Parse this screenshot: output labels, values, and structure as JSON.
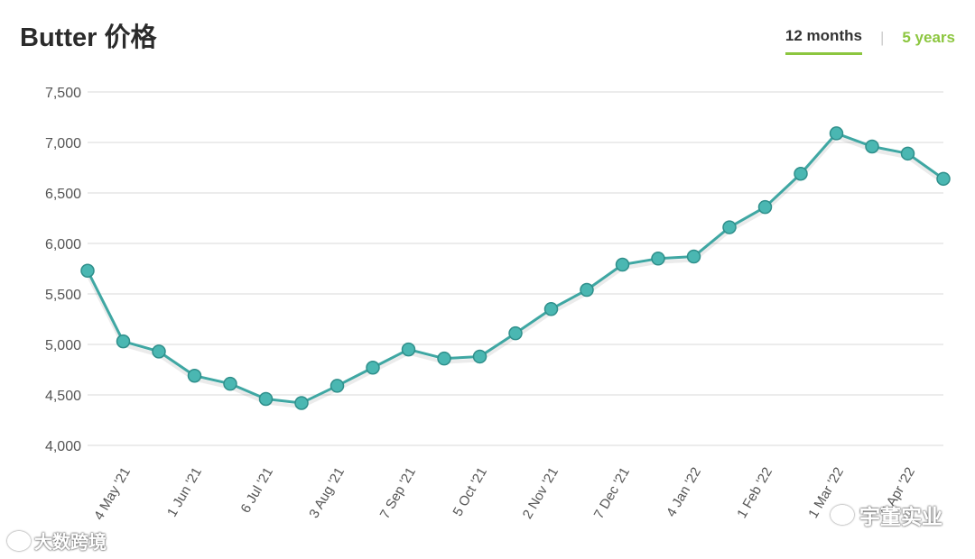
{
  "header": {
    "title": "Butter 价格",
    "tabs": [
      {
        "label": "12 months",
        "active": true
      },
      {
        "label": "5 years",
        "active": false
      }
    ]
  },
  "watermarks": {
    "left": "大数跨境",
    "right": "宇董实业"
  },
  "colors": {
    "line": "#3fa7a3",
    "point": "#4ab7b2",
    "accent": "#8cc63f",
    "grid": "#e6e6e6"
  },
  "chart_data": {
    "type": "line",
    "title": "Butter 价格",
    "xlabel": "",
    "ylabel": "",
    "ylim": [
      4000,
      7500
    ],
    "yticks": [
      4000,
      4500,
      5000,
      5500,
      6000,
      6500,
      7000,
      7500
    ],
    "ytick_labels": [
      "4,000",
      "4,500",
      "5,000",
      "5,500",
      "6,000",
      "6,500",
      "7,000",
      "7,500"
    ],
    "xtick_labels": [
      "4 May '21",
      "1 Jun '21",
      "6 Jul '21",
      "3 Aug '21",
      "7 Sep '21",
      "5 Oct '21",
      "2 Nov '21",
      "7 Dec '21",
      "4 Jan '22",
      "1 Feb '22",
      "1 Mar '22",
      "5 Apr '22"
    ],
    "xtick_point_index": [
      1,
      3,
      5,
      7,
      9,
      11,
      13,
      15,
      17,
      19,
      21,
      23
    ],
    "grid": true,
    "legend": "none",
    "series": [
      {
        "values": [
          5730,
          5030,
          4930,
          4690,
          4610,
          4460,
          4420,
          4590,
          4770,
          4950,
          4860,
          4880,
          5110,
          5350,
          5540,
          5790,
          5850,
          5870,
          6160,
          6360,
          6690,
          7090,
          6960,
          6890,
          6640
        ]
      }
    ]
  }
}
